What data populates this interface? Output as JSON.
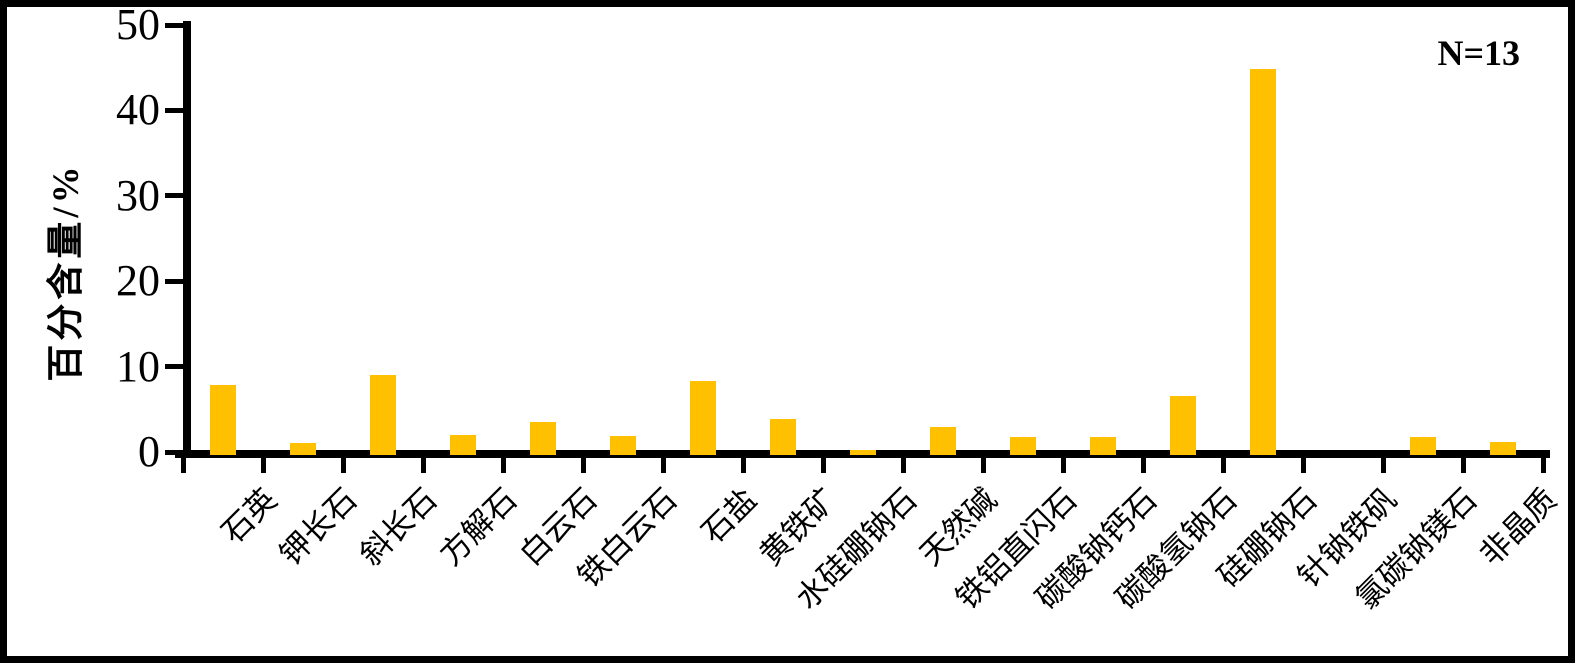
{
  "chart_data": {
    "type": "bar",
    "title": "",
    "xlabel": "",
    "ylabel": "百分含量/%",
    "annotation": "N=13",
    "ylim": [
      0,
      50
    ],
    "yticks": [
      0,
      10,
      20,
      30,
      40,
      50
    ],
    "grid": false,
    "legend": null,
    "bar_color": "#FFC000",
    "axis_color": "#000000",
    "categories": [
      "石英",
      "钾长石",
      "斜长石",
      "方解石",
      "白云石",
      "铁白云石",
      "石盐",
      "黄铁矿",
      "水硅硼钠石",
      "天然碱",
      "铁铝直闪石",
      "碳酸钠钙石",
      "碳酸氢钠石",
      "硅硼钠石",
      "针钠铁矾",
      "氯碳钠镁石",
      "非晶质"
    ],
    "values": [
      7.8,
      1.1,
      9.0,
      2.0,
      3.5,
      1.9,
      8.3,
      3.9,
      0.2,
      2.9,
      1.7,
      1.8,
      6.5,
      44.9,
      0,
      1.7,
      1.2
    ]
  }
}
